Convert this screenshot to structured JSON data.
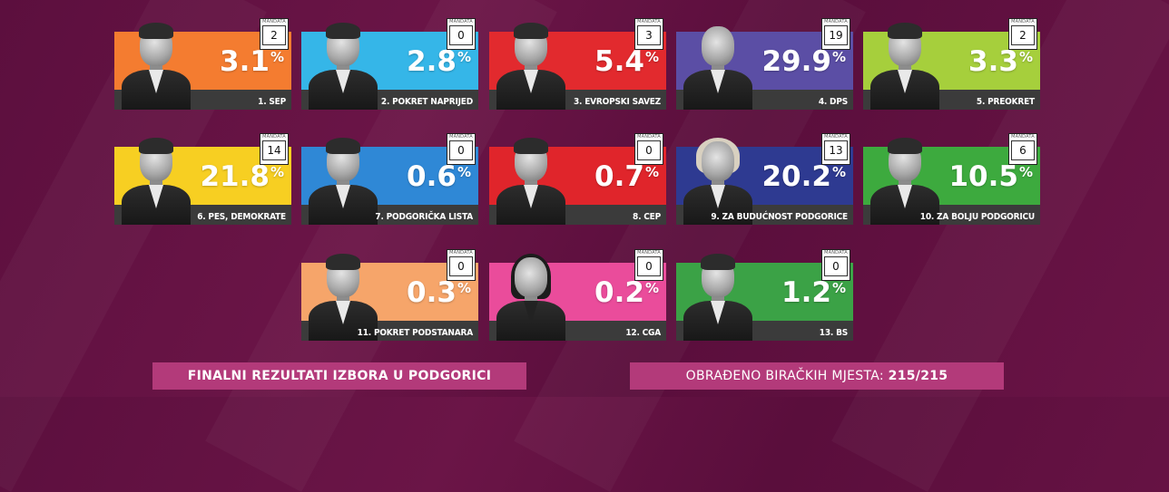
{
  "colors": {
    "background": "#5e103f",
    "footer": "#b33a7a",
    "name_bar": "#3b3b3b"
  },
  "mandate_label": "MANDATA",
  "parties": [
    {
      "number_name": "1. SEP",
      "percent": "3.1",
      "percent_sign": "%",
      "mandates": "2",
      "color": "#f47c30",
      "photo": "man-glasses"
    },
    {
      "number_name": "2. POKRET NAPRIJED",
      "percent": "2.8",
      "percent_sign": "%",
      "mandates": "0",
      "color": "#35b6e8",
      "photo": "man-beard"
    },
    {
      "number_name": "3. EVROPSKI SAVEZ",
      "percent": "5.4",
      "percent_sign": "%",
      "mandates": "3",
      "color": "#e22a2e",
      "photo": "man-suit"
    },
    {
      "number_name": "4. DPS",
      "percent": "29.9",
      "percent_sign": "%",
      "mandates": "19",
      "color": "#5b4ea5",
      "photo": "man-bald"
    },
    {
      "number_name": "5. PREOKRET",
      "percent": "3.3",
      "percent_sign": "%",
      "mandates": "2",
      "color": "#a6cf3c",
      "photo": "man-short-hair"
    },
    {
      "number_name": "6. PES, DEMOKRATE",
      "percent": "21.8",
      "percent_sign": "%",
      "mandates": "14",
      "color": "#f7cf22",
      "photo": "man-suit"
    },
    {
      "number_name": "7. PODGORIČKA LISTA",
      "percent": "0.6",
      "percent_sign": "%",
      "mandates": "0",
      "color": "#2f88d6",
      "photo": "man-dark-hair"
    },
    {
      "number_name": "8. CEP",
      "percent": "0.7",
      "percent_sign": "%",
      "mandates": "0",
      "color": "#e0252b",
      "photo": "man-grey"
    },
    {
      "number_name": "9. ZA BUDUĆNOST PODGORICE",
      "percent": "20.2",
      "percent_sign": "%",
      "mandates": "13",
      "color": "#2e3a91",
      "photo": "woman-blonde"
    },
    {
      "number_name": "10. ZA BOLJU PODGORICU",
      "percent": "10.5",
      "percent_sign": "%",
      "mandates": "6",
      "color": "#3daa3e",
      "photo": "man-young"
    },
    {
      "number_name": "11. POKRET PODSTANARA",
      "percent": "0.3",
      "percent_sign": "%",
      "mandates": "0",
      "color": "#f6a56a",
      "photo": "man-short-hair"
    },
    {
      "number_name": "12. CGA",
      "percent": "0.2",
      "percent_sign": "%",
      "mandates": "0",
      "color": "#ea4c9b",
      "photo": "man-long-hair"
    },
    {
      "number_name": "13. BS",
      "percent": "1.2",
      "percent_sign": "%",
      "mandates": "0",
      "color": "#3ba246",
      "photo": "man-grey"
    }
  ],
  "footer": {
    "left": "FINALNI REZULTATI IZBORA U PODGORICI",
    "right_label": "OBRAĐENO BIRAČKIH MJESTA:",
    "right_value": "215/215"
  }
}
